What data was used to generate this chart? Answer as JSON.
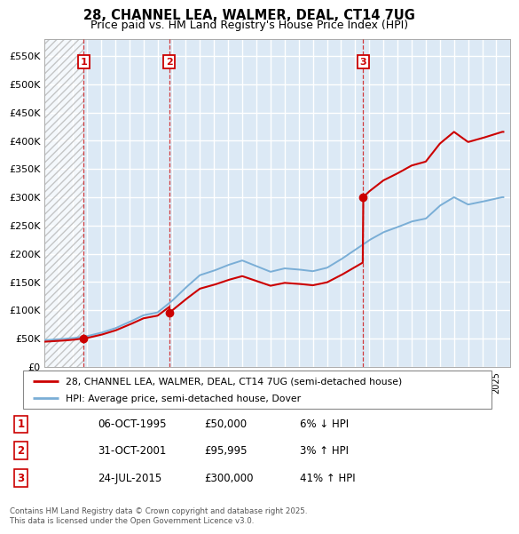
{
  "title1": "28, CHANNEL LEA, WALMER, DEAL, CT14 7UG",
  "title2": "Price paid vs. HM Land Registry's House Price Index (HPI)",
  "purchases": [
    {
      "date": 1995.76,
      "price": 50000,
      "label": "1"
    },
    {
      "date": 2001.83,
      "price": 95995,
      "label": "2"
    },
    {
      "date": 2015.56,
      "price": 300000,
      "label": "3"
    }
  ],
  "vline_dates": [
    1995.76,
    2001.83,
    2015.56
  ],
  "sale_color": "#cc0000",
  "hpi_color": "#7aaed6",
  "legend_sale": "28, CHANNEL LEA, WALMER, DEAL, CT14 7UG (semi-detached house)",
  "legend_hpi": "HPI: Average price, semi-detached house, Dover",
  "table_entries": [
    {
      "num": "1",
      "date": "06-OCT-1995",
      "price": "£50,000",
      "change": "6% ↓ HPI"
    },
    {
      "num": "2",
      "date": "31-OCT-2001",
      "price": "£95,995",
      "change": "3% ↑ HPI"
    },
    {
      "num": "3",
      "date": "24-JUL-2015",
      "price": "£300,000",
      "change": "41% ↑ HPI"
    }
  ],
  "footer": "Contains HM Land Registry data © Crown copyright and database right 2025.\nThis data is licensed under the Open Government Licence v3.0.",
  "background_color": "#dce9f5",
  "yticks": [
    0,
    50000,
    100000,
    150000,
    200000,
    250000,
    300000,
    350000,
    400000,
    450000,
    500000,
    550000
  ],
  "ytick_labels": [
    "£0",
    "£50K",
    "£100K",
    "£150K",
    "£200K",
    "£250K",
    "£300K",
    "£350K",
    "£400K",
    "£450K",
    "£500K",
    "£550K"
  ],
  "ylim": [
    0,
    580000
  ],
  "xlim": [
    1993.0,
    2026.0
  ],
  "hpi_anchors_years": [
    1993,
    1994,
    1995,
    1996,
    1997,
    1998,
    1999,
    2000,
    2001,
    2002,
    2003,
    2004,
    2005,
    2006,
    2007,
    2008,
    2009,
    2010,
    2011,
    2012,
    2013,
    2014,
    2015,
    2016,
    2017,
    2018,
    2019,
    2020,
    2021,
    2022,
    2023,
    2024,
    2025.4
  ],
  "hpi_anchors_vals": [
    47000,
    48500,
    50500,
    54000,
    60000,
    68000,
    79000,
    91000,
    96000,
    116000,
    140000,
    162000,
    170000,
    180000,
    188000,
    178000,
    168000,
    174000,
    172000,
    169000,
    175000,
    190000,
    207000,
    224000,
    238000,
    247000,
    257000,
    262000,
    285000,
    300000,
    287000,
    292000,
    300000
  ]
}
